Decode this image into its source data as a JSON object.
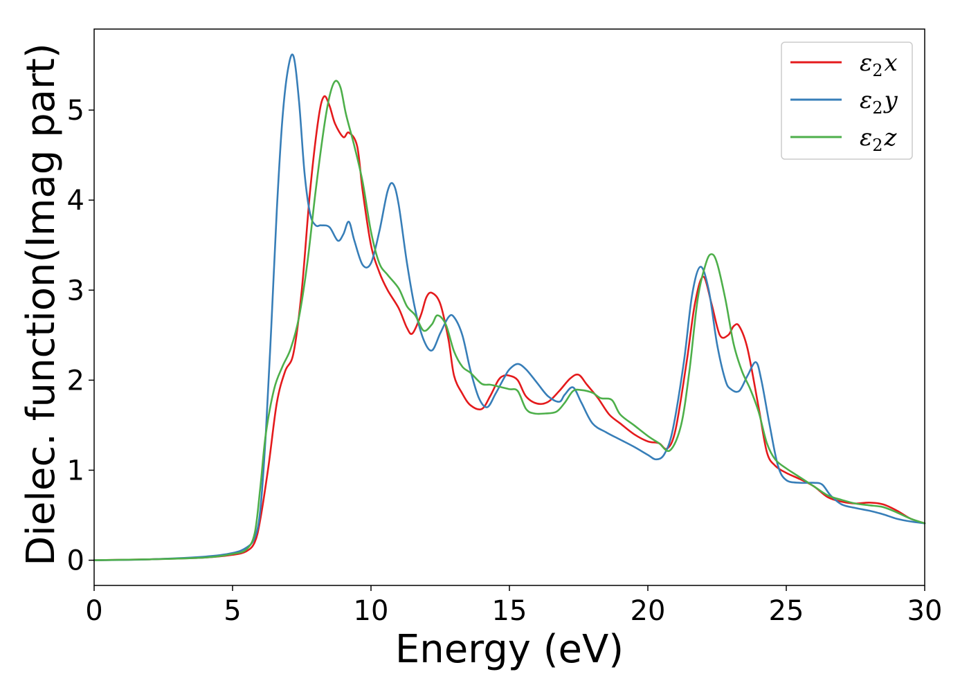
{
  "chart_data": {
    "type": "line",
    "title": "",
    "xlabel": "Energy (eV)",
    "ylabel": "Dielec. function(Imag part)",
    "xlim": [
      0,
      30
    ],
    "ylim": [
      -0.28,
      5.9
    ],
    "xticks": [
      0,
      5,
      10,
      15,
      20,
      25,
      30
    ],
    "yticks": [
      0,
      1,
      2,
      3,
      4,
      5
    ],
    "xtick_labels": [
      "0",
      "5",
      "10",
      "15",
      "20",
      "25",
      "30"
    ],
    "ytick_labels": [
      "0",
      "1",
      "2",
      "3",
      "4",
      "5"
    ],
    "grid": false,
    "legend_position": "top-right",
    "series": [
      {
        "name": "ε2x",
        "legend_base": "ε",
        "legend_sub": "2",
        "legend_suffix": "x",
        "color": "#e41a1c",
        "x": [
          0,
          2,
          4,
          5,
          5.5,
          5.8,
          6.0,
          6.3,
          6.6,
          6.9,
          7.2,
          7.5,
          7.8,
          8.1,
          8.3,
          8.5,
          8.7,
          9.0,
          9.2,
          9.5,
          9.7,
          10.0,
          10.3,
          10.6,
          11.0,
          11.3,
          11.5,
          11.8,
          12.0,
          12.2,
          12.5,
          12.8,
          13.0,
          13.3,
          13.6,
          14.0,
          14.3,
          14.6,
          14.8,
          15.0,
          15.3,
          15.6,
          16.0,
          16.4,
          16.8,
          17.2,
          17.5,
          17.8,
          18.2,
          18.6,
          19.0,
          19.5,
          20.0,
          20.4,
          20.7,
          21.0,
          21.4,
          21.7,
          22.0,
          22.3,
          22.6,
          22.9,
          23.1,
          23.3,
          23.6,
          24.0,
          24.3,
          24.6,
          25.0,
          25.5,
          26.0,
          26.5,
          27.0,
          27.5,
          28.0,
          28.5,
          29.0,
          29.5,
          30.0
        ],
        "y": [
          0.0,
          0.01,
          0.03,
          0.06,
          0.1,
          0.2,
          0.45,
          1.05,
          1.75,
          2.1,
          2.3,
          3.0,
          4.1,
          4.9,
          5.15,
          5.05,
          4.85,
          4.7,
          4.75,
          4.6,
          4.1,
          3.5,
          3.2,
          3.0,
          2.8,
          2.58,
          2.52,
          2.72,
          2.92,
          2.97,
          2.85,
          2.45,
          2.05,
          1.85,
          1.72,
          1.68,
          1.82,
          2.0,
          2.05,
          2.05,
          2.0,
          1.82,
          1.74,
          1.76,
          1.88,
          2.02,
          2.06,
          1.95,
          1.8,
          1.62,
          1.52,
          1.4,
          1.32,
          1.3,
          1.24,
          1.45,
          2.2,
          2.85,
          3.15,
          2.85,
          2.5,
          2.5,
          2.6,
          2.6,
          2.35,
          1.7,
          1.2,
          1.05,
          0.97,
          0.9,
          0.82,
          0.7,
          0.65,
          0.63,
          0.64,
          0.62,
          0.55,
          0.46,
          0.41
        ]
      },
      {
        "name": "ε2y",
        "legend_base": "ε",
        "legend_sub": "2",
        "legend_suffix": "y",
        "color": "#377eb8",
        "x": [
          0,
          2,
          4,
          5,
          5.5,
          5.8,
          6.0,
          6.2,
          6.4,
          6.6,
          6.8,
          7.0,
          7.2,
          7.4,
          7.6,
          7.8,
          8.0,
          8.2,
          8.5,
          8.8,
          9.0,
          9.2,
          9.4,
          9.7,
          10.0,
          10.3,
          10.6,
          10.8,
          11.0,
          11.3,
          11.6,
          11.9,
          12.2,
          12.5,
          12.8,
          13.0,
          13.3,
          13.6,
          13.9,
          14.2,
          14.5,
          14.8,
          15.0,
          15.3,
          15.6,
          16.0,
          16.4,
          16.8,
          17.0,
          17.3,
          17.6,
          18.0,
          18.5,
          19.0,
          19.5,
          20.0,
          20.3,
          20.6,
          20.9,
          21.3,
          21.6,
          21.9,
          22.2,
          22.5,
          22.8,
          23.0,
          23.3,
          23.6,
          23.9,
          24.1,
          24.4,
          24.7,
          25.0,
          25.5,
          26.0,
          26.3,
          26.6,
          27.0,
          27.5,
          28.0,
          28.5,
          29.0,
          29.5,
          30.0
        ],
        "y": [
          0.0,
          0.01,
          0.04,
          0.08,
          0.14,
          0.25,
          0.55,
          1.4,
          2.6,
          3.9,
          4.9,
          5.45,
          5.6,
          5.1,
          4.3,
          3.85,
          3.72,
          3.72,
          3.7,
          3.55,
          3.62,
          3.76,
          3.55,
          3.28,
          3.3,
          3.65,
          4.1,
          4.18,
          3.95,
          3.3,
          2.78,
          2.45,
          2.33,
          2.52,
          2.7,
          2.7,
          2.5,
          2.1,
          1.8,
          1.7,
          1.85,
          2.02,
          2.12,
          2.18,
          2.12,
          1.97,
          1.82,
          1.76,
          1.84,
          1.92,
          1.75,
          1.52,
          1.42,
          1.34,
          1.26,
          1.17,
          1.12,
          1.18,
          1.45,
          2.2,
          2.95,
          3.26,
          3.0,
          2.4,
          2.0,
          1.9,
          1.88,
          2.05,
          2.2,
          2.0,
          1.5,
          1.05,
          0.89,
          0.86,
          0.86,
          0.84,
          0.72,
          0.62,
          0.58,
          0.55,
          0.51,
          0.46,
          0.43,
          0.41
        ]
      },
      {
        "name": "ε2z",
        "legend_base": "ε",
        "legend_sub": "2",
        "legend_suffix": "z",
        "color": "#4daf4a",
        "x": [
          0,
          2,
          4,
          5,
          5.5,
          5.8,
          6.0,
          6.2,
          6.5,
          6.8,
          7.1,
          7.4,
          7.7,
          8.0,
          8.3,
          8.5,
          8.7,
          8.9,
          9.1,
          9.4,
          9.7,
          10.0,
          10.3,
          10.6,
          11.0,
          11.3,
          11.6,
          11.9,
          12.2,
          12.4,
          12.7,
          13.0,
          13.3,
          13.6,
          14.0,
          14.3,
          14.6,
          15.0,
          15.3,
          15.6,
          15.9,
          16.3,
          16.7,
          17.0,
          17.3,
          17.6,
          18.0,
          18.3,
          18.7,
          19.0,
          19.5,
          20.0,
          20.4,
          20.8,
          21.2,
          21.5,
          21.8,
          22.1,
          22.3,
          22.5,
          22.8,
          23.1,
          23.4,
          23.7,
          24.0,
          24.3,
          24.6,
          25.0,
          25.5,
          26.0,
          26.5,
          27.0,
          27.5,
          28.0,
          28.5,
          29.0,
          29.5,
          30.0
        ],
        "y": [
          0.0,
          0.01,
          0.03,
          0.07,
          0.12,
          0.3,
          0.8,
          1.4,
          1.9,
          2.15,
          2.35,
          2.7,
          3.3,
          4.1,
          4.8,
          5.15,
          5.32,
          5.25,
          4.95,
          4.6,
          4.2,
          3.65,
          3.3,
          3.17,
          3.02,
          2.82,
          2.72,
          2.55,
          2.62,
          2.72,
          2.62,
          2.32,
          2.15,
          2.08,
          1.96,
          1.95,
          1.93,
          1.9,
          1.88,
          1.68,
          1.63,
          1.63,
          1.65,
          1.75,
          1.88,
          1.89,
          1.86,
          1.8,
          1.78,
          1.62,
          1.5,
          1.38,
          1.3,
          1.22,
          1.5,
          2.1,
          2.9,
          3.3,
          3.4,
          3.3,
          2.9,
          2.4,
          2.1,
          1.9,
          1.65,
          1.3,
          1.12,
          1.02,
          0.92,
          0.82,
          0.72,
          0.67,
          0.63,
          0.61,
          0.59,
          0.53,
          0.46,
          0.41
        ]
      }
    ]
  }
}
